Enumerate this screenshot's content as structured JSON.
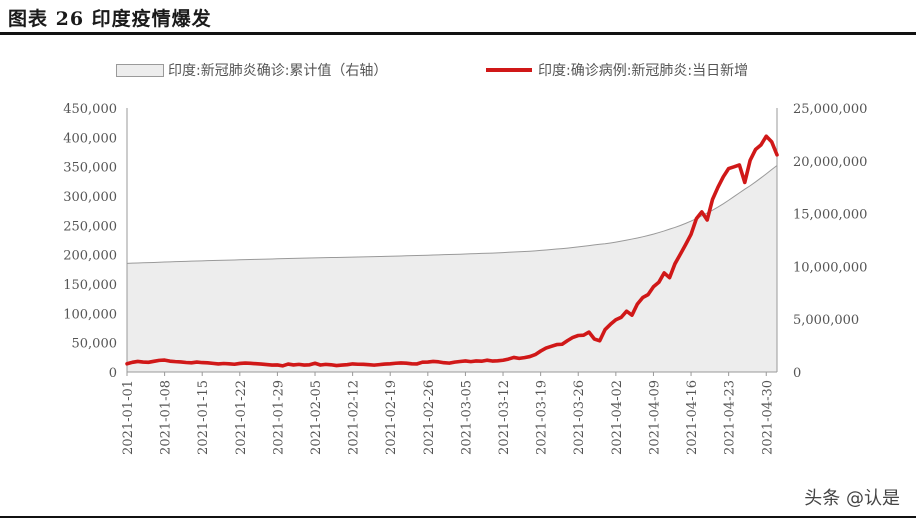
{
  "figure": {
    "title": "图表 26  印度疫情爆发",
    "watermark": "头条 @认是"
  },
  "chart_data": {
    "type": "line",
    "title": "",
    "legend_placement": "top",
    "grid": false,
    "x": [
      "2021-01-01",
      "2021-01-02",
      "2021-01-03",
      "2021-01-04",
      "2021-01-05",
      "2021-01-06",
      "2021-01-07",
      "2021-01-08",
      "2021-01-09",
      "2021-01-10",
      "2021-01-11",
      "2021-01-12",
      "2021-01-13",
      "2021-01-14",
      "2021-01-15",
      "2021-01-16",
      "2021-01-17",
      "2021-01-18",
      "2021-01-19",
      "2021-01-20",
      "2021-01-21",
      "2021-01-22",
      "2021-01-23",
      "2021-01-24",
      "2021-01-25",
      "2021-01-26",
      "2021-01-27",
      "2021-01-28",
      "2021-01-29",
      "2021-01-30",
      "2021-01-31",
      "2021-02-01",
      "2021-02-02",
      "2021-02-03",
      "2021-02-04",
      "2021-02-05",
      "2021-02-06",
      "2021-02-07",
      "2021-02-08",
      "2021-02-09",
      "2021-02-10",
      "2021-02-11",
      "2021-02-12",
      "2021-02-13",
      "2021-02-14",
      "2021-02-15",
      "2021-02-16",
      "2021-02-17",
      "2021-02-18",
      "2021-02-19",
      "2021-02-20",
      "2021-02-21",
      "2021-02-22",
      "2021-02-23",
      "2021-02-24",
      "2021-02-25",
      "2021-02-26",
      "2021-02-27",
      "2021-02-28",
      "2021-03-01",
      "2021-03-02",
      "2021-03-03",
      "2021-03-04",
      "2021-03-05",
      "2021-03-06",
      "2021-03-07",
      "2021-03-08",
      "2021-03-09",
      "2021-03-10",
      "2021-03-11",
      "2021-03-12",
      "2021-03-13",
      "2021-03-14",
      "2021-03-15",
      "2021-03-16",
      "2021-03-17",
      "2021-03-18",
      "2021-03-19",
      "2021-03-20",
      "2021-03-21",
      "2021-03-22",
      "2021-03-23",
      "2021-03-24",
      "2021-03-25",
      "2021-03-26",
      "2021-03-27",
      "2021-03-28",
      "2021-03-29",
      "2021-03-30",
      "2021-03-31",
      "2021-04-01",
      "2021-04-02",
      "2021-04-03",
      "2021-04-04",
      "2021-04-05",
      "2021-04-06",
      "2021-04-07",
      "2021-04-08",
      "2021-04-09",
      "2021-04-10",
      "2021-04-11",
      "2021-04-12",
      "2021-04-13",
      "2021-04-14",
      "2021-04-15",
      "2021-04-16",
      "2021-04-17",
      "2021-04-18",
      "2021-04-19",
      "2021-04-20",
      "2021-04-21",
      "2021-04-22",
      "2021-04-23",
      "2021-04-24",
      "2021-04-25",
      "2021-04-26",
      "2021-04-27",
      "2021-04-28",
      "2021-04-29",
      "2021-04-30",
      "2021-05-01",
      "2021-05-02"
    ],
    "x_tick_labels": [
      "2021-01-01",
      "2021-01-08",
      "2021-01-15",
      "2021-01-22",
      "2021-01-29",
      "2021-02-05",
      "2021-02-12",
      "2021-02-19",
      "2021-02-26",
      "2021-03-05",
      "2021-03-12",
      "2021-03-19",
      "2021-03-26",
      "2021-04-02",
      "2021-04-09",
      "2021-04-16",
      "2021-04-23",
      "2021-04-30"
    ],
    "y_left": {
      "min": 0,
      "max": 450000,
      "ticks": [
        "0",
        "50,000",
        "100,000",
        "150,000",
        "200,000",
        "250,000",
        "300,000",
        "350,000",
        "400,000",
        "450,000"
      ]
    },
    "y_right": {
      "min": 0,
      "max": 25000000,
      "ticks": [
        "0",
        "5,000,000",
        "10,000,000",
        "15,000,000",
        "20,000,000",
        "25,000,000"
      ]
    },
    "series": [
      {
        "name": "印度:新冠肺炎确诊:累计值（右轴）",
        "type": "area",
        "axis": "right",
        "color": "#ededed",
        "stroke": "#9a9a9a",
        "values": [
          10290000,
          10305000,
          10325000,
          10340000,
          10356000,
          10375000,
          10395000,
          10413000,
          10430000,
          10450000,
          10466000,
          10480000,
          10495000,
          10512000,
          10527000,
          10542000,
          10557000,
          10572000,
          10582000,
          10596000,
          10610000,
          10626000,
          10641000,
          10655000,
          10667000,
          10677000,
          10690000,
          10702000,
          10720000,
          10733000,
          10746000,
          10757000,
          10766000,
          10778000,
          10790000,
          10802000,
          10814000,
          10826000,
          10838000,
          10848000,
          10860000,
          10871000,
          10883000,
          10894000,
          10905000,
          10916000,
          10925000,
          10937000,
          10950000,
          10963000,
          10977000,
          10991000,
          11005000,
          11016000,
          11030000,
          11046000,
          11062000,
          11079000,
          11096000,
          11112000,
          11124000,
          11139000,
          11156000,
          11173000,
          11192000,
          11211000,
          11229000,
          11244000,
          11262000,
          11285000,
          11308000,
          11334000,
          11359000,
          11385000,
          11410000,
          11439000,
          11474000,
          11514000,
          11555000,
          11600000,
          11646000,
          11686000,
          11734000,
          11787000,
          11846000,
          11908000,
          11971000,
          12039000,
          12095000,
          12149000,
          12221000,
          12303000,
          12392000,
          12485000,
          12589000,
          12686000,
          12801000,
          12928000,
          13060000,
          13205000,
          13358000,
          13527000,
          13689000,
          13873000,
          14074000,
          14291000,
          14526000,
          14788000,
          15061000,
          15321000,
          15616000,
          15930000,
          16263000,
          16610000,
          16960000,
          17313000,
          17636000,
          17997000,
          18376000,
          18762000,
          19164000,
          19557000
        ]
      },
      {
        "name": "印度:确诊病例:新冠肺炎:当日新增",
        "type": "line",
        "axis": "left",
        "color": "#d01818",
        "values": [
          14000,
          16500,
          18000,
          17000,
          16500,
          18200,
          19800,
          20300,
          18500,
          17700,
          17200,
          16200,
          15700,
          16900,
          16000,
          15600,
          14700,
          13800,
          14500,
          14000,
          13200,
          14600,
          15200,
          14800,
          14100,
          13500,
          12700,
          11800,
          12000,
          10500,
          13500,
          12000,
          13000,
          11800,
          12300,
          14900,
          11900,
          13000,
          12300,
          11000,
          11800,
          12500,
          13800,
          13200,
          13100,
          12500,
          11700,
          12600,
          13500,
          14000,
          14900,
          15500,
          15000,
          14000,
          13800,
          16700,
          17000,
          18000,
          17300,
          15800,
          15100,
          16800,
          17900,
          18800,
          17700,
          18900,
          18400,
          20100,
          18700,
          19000,
          20000,
          22000,
          24800,
          23200,
          24500,
          26300,
          29700,
          35700,
          40800,
          43800,
          46700,
          47300,
          53500,
          59000,
          62200,
          62700,
          68000,
          56200,
          53300,
          72400,
          81300,
          89100,
          93200,
          103600,
          96900,
          115700,
          126800,
          131900,
          145300,
          152900,
          168900,
          160700,
          184400,
          200700,
          217400,
          234700,
          261500,
          272900,
          259100,
          294300,
          314800,
          332700,
          346800,
          349700,
          352900,
          323100,
          360900,
          379200,
          386900,
          401900,
          392500,
          370100
        ]
      }
    ]
  }
}
